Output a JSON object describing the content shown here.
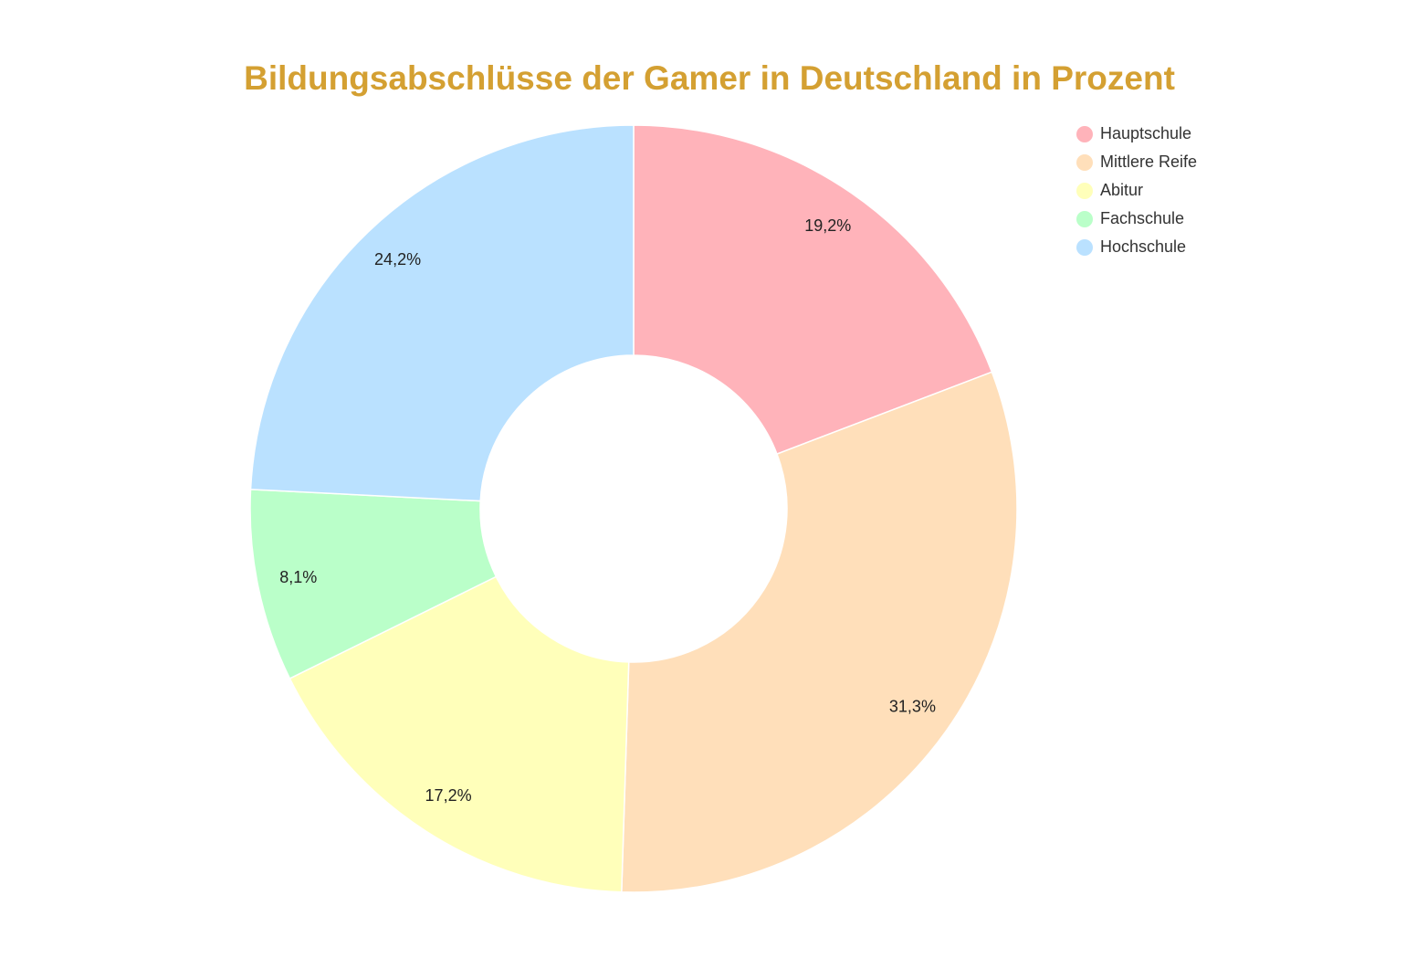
{
  "chart_data": {
    "type": "donut",
    "title": "Bildungsabschlüsse der Gamer in Deutschland in Prozent",
    "categories": [
      "Hauptschule",
      "Mittlere Reife",
      "Abitur",
      "Fachschule",
      "Hochschule"
    ],
    "values": [
      19.2,
      31.3,
      17.2,
      8.1,
      24.2
    ],
    "value_labels": [
      "19,2%",
      "31,3%",
      "17,2%",
      "8,1%",
      "24,2%"
    ],
    "colors": [
      "#ffb3ba",
      "#ffdfba",
      "#ffffba",
      "#baffc9",
      "#bae1ff"
    ],
    "legend": "top-right"
  }
}
